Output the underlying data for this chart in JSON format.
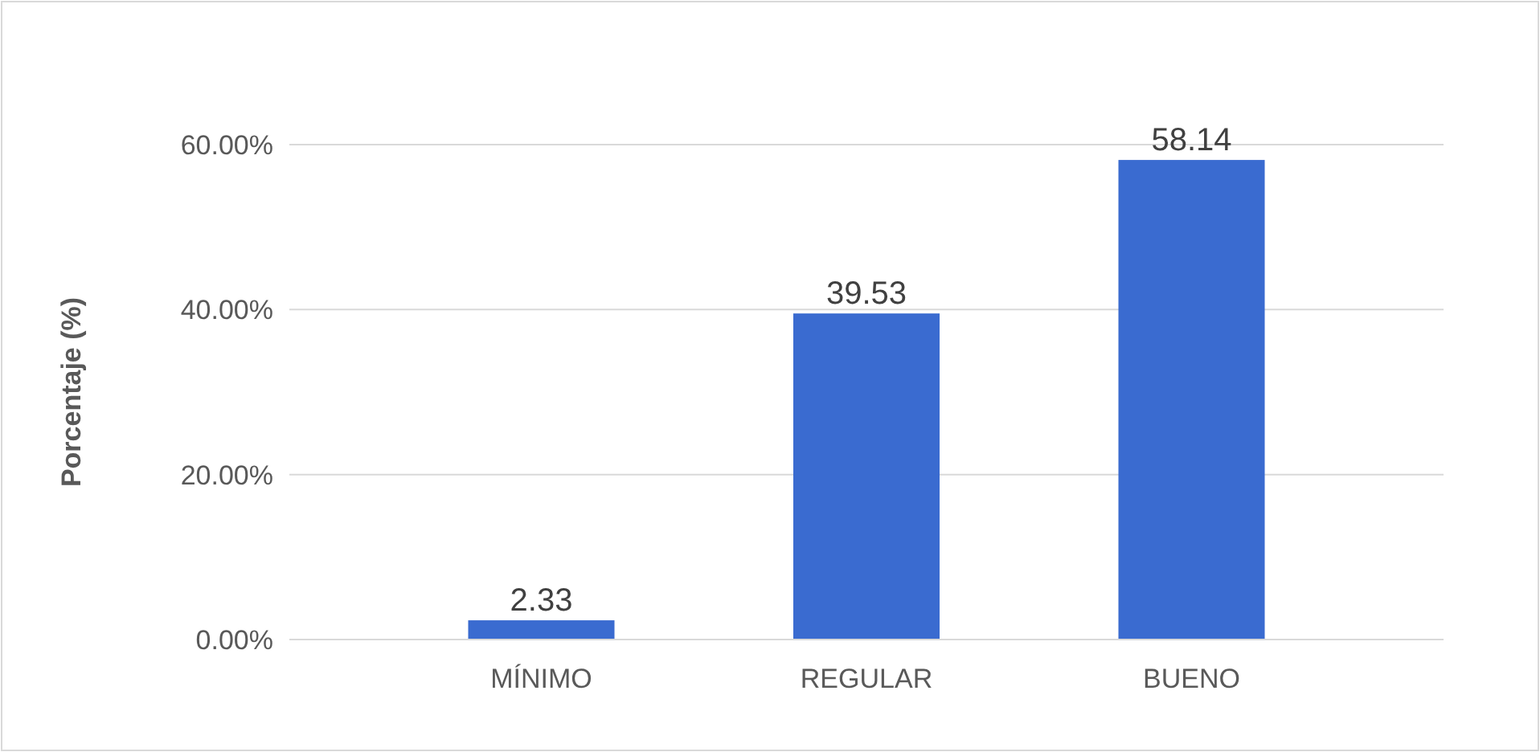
{
  "chart_data": {
    "type": "bar",
    "ylabel": "Porcentaje (%)",
    "categories": [
      "MÍNIMO",
      "REGULAR",
      "BUENO"
    ],
    "values": [
      2.33,
      39.53,
      58.14
    ],
    "color": "#3a6bd0",
    "ylim": [
      0,
      60
    ],
    "yticks": [
      {
        "value": 0,
        "label": "0.00%"
      },
      {
        "value": 20,
        "label": "20.00%"
      },
      {
        "value": 40,
        "label": "40.00%"
      },
      {
        "value": 60,
        "label": "60.00%"
      }
    ],
    "grid": "y",
    "data_labels": true
  }
}
